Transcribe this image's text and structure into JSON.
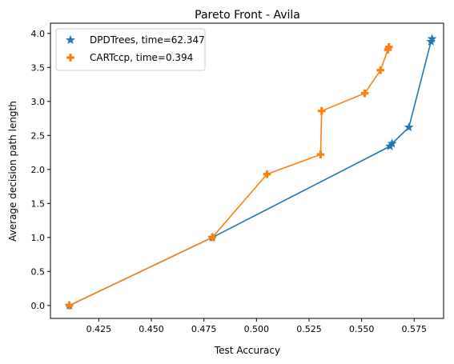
{
  "chart_data": {
    "type": "line",
    "title": "Pareto Front - Avila",
    "xlabel": "Test Accuracy",
    "ylabel": "Average decision path length",
    "xlim": [
      0.402,
      0.589
    ],
    "ylim": [
      -0.19,
      4.15
    ],
    "xticks": [
      0.425,
      0.45,
      0.475,
      0.5,
      0.525,
      0.55,
      0.575
    ],
    "xtick_labels": [
      "0.425",
      "0.450",
      "0.475",
      "0.500",
      "0.525",
      "0.550",
      "0.575"
    ],
    "yticks": [
      0.0,
      0.5,
      1.0,
      1.5,
      2.0,
      2.5,
      3.0,
      3.5,
      4.0
    ],
    "ytick_labels": [
      "0.0",
      "0.5",
      "1.0",
      "1.5",
      "2.0",
      "2.5",
      "3.0",
      "3.5",
      "4.0"
    ],
    "grid": false,
    "legend_position": "upper-left",
    "series": [
      {
        "name": "DPDTrees, time=62.347",
        "marker": "star",
        "color": "#1f77b4",
        "x": [
          0.411,
          0.479,
          0.5635,
          0.5645,
          0.5725,
          0.583,
          0.5835
        ],
        "y": [
          0.0,
          1.0,
          2.34,
          2.38,
          2.62,
          3.88,
          3.92
        ]
      },
      {
        "name": "CARTccp, time=0.394",
        "marker": "plus",
        "color": "#ff7f0e",
        "x": [
          0.411,
          0.479,
          0.505,
          0.5305,
          0.531,
          0.5515,
          0.559,
          0.5625,
          0.563
        ],
        "y": [
          0.0,
          1.0,
          1.93,
          2.22,
          2.86,
          3.12,
          3.46,
          3.76,
          3.8
        ]
      }
    ]
  }
}
